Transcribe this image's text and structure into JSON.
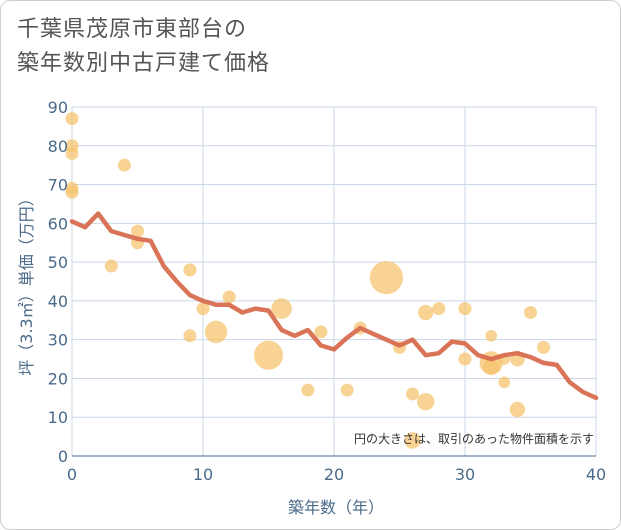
{
  "chart_data": {
    "type": "scatter",
    "title_lines": [
      "千葉県茂原市東部台の",
      "築年数別中古戸建て価格"
    ],
    "xlabel": "築年数（年）",
    "ylabel": "坪（3.3㎡）単価（万円）",
    "xlim": [
      0,
      40
    ],
    "ylim": [
      0,
      90
    ],
    "x_ticks": [
      0,
      10,
      20,
      30,
      40
    ],
    "y_ticks": [
      0,
      10,
      20,
      30,
      40,
      50,
      60,
      70,
      80,
      90
    ],
    "grid": true,
    "note": "円の大きさは、取引のあった物件面積を示す",
    "colors": {
      "bubble": "#f5c26b",
      "line": "#d86d4f",
      "axis_text": "#4a6a8a",
      "grid": "#c9d7e6"
    },
    "bubbles": [
      {
        "x": 0,
        "y": 87,
        "size": 1
      },
      {
        "x": 0,
        "y": 80,
        "size": 1
      },
      {
        "x": 0,
        "y": 78,
        "size": 1
      },
      {
        "x": 0,
        "y": 69,
        "size": 1
      },
      {
        "x": 0,
        "y": 68,
        "size": 1
      },
      {
        "x": 4,
        "y": 75,
        "size": 1
      },
      {
        "x": 3,
        "y": 49,
        "size": 1
      },
      {
        "x": 5,
        "y": 58,
        "size": 1
      },
      {
        "x": 5,
        "y": 55,
        "size": 1
      },
      {
        "x": 9,
        "y": 48,
        "size": 1
      },
      {
        "x": 9,
        "y": 31,
        "size": 1
      },
      {
        "x": 10,
        "y": 38,
        "size": 1
      },
      {
        "x": 11,
        "y": 32,
        "size": 3
      },
      {
        "x": 12,
        "y": 41,
        "size": 1
      },
      {
        "x": 15,
        "y": 26,
        "size": 5
      },
      {
        "x": 16,
        "y": 38,
        "size": 2.5
      },
      {
        "x": 18,
        "y": 17,
        "size": 1
      },
      {
        "x": 19,
        "y": 32,
        "size": 1
      },
      {
        "x": 21,
        "y": 17,
        "size": 1
      },
      {
        "x": 22,
        "y": 33,
        "size": 1
      },
      {
        "x": 24,
        "y": 46,
        "size": 6.5
      },
      {
        "x": 25,
        "y": 28,
        "size": 1
      },
      {
        "x": 26,
        "y": 16,
        "size": 1
      },
      {
        "x": 26,
        "y": 4,
        "size": 1.6
      },
      {
        "x": 27,
        "y": 37,
        "size": 1.4
      },
      {
        "x": 27,
        "y": 14,
        "size": 1.8
      },
      {
        "x": 28,
        "y": 38,
        "size": 1
      },
      {
        "x": 30,
        "y": 38,
        "size": 1
      },
      {
        "x": 30,
        "y": 25,
        "size": 1
      },
      {
        "x": 32,
        "y": 31,
        "size": 0.8
      },
      {
        "x": 32,
        "y": 24,
        "size": 3.2
      },
      {
        "x": 32,
        "y": 23,
        "size": 1.6
      },
      {
        "x": 33,
        "y": 19,
        "size": 0.8
      },
      {
        "x": 33,
        "y": 25,
        "size": 0.8
      },
      {
        "x": 34,
        "y": 25,
        "size": 1.3
      },
      {
        "x": 34,
        "y": 12,
        "size": 1.4
      },
      {
        "x": 35,
        "y": 37,
        "size": 1
      },
      {
        "x": 36,
        "y": 28,
        "size": 1
      }
    ],
    "series": [
      {
        "type": "line",
        "x": [
          0,
          1,
          2,
          3,
          4,
          5,
          6,
          7,
          8,
          9,
          10,
          11,
          12,
          13,
          14,
          15,
          16,
          17,
          18,
          19,
          20,
          21,
          22,
          23,
          24,
          25,
          26,
          27,
          28,
          29,
          30,
          31,
          32,
          33,
          34,
          35,
          36,
          37,
          38,
          39,
          40
        ],
        "values": [
          60.5,
          59,
          62.5,
          58,
          57,
          56,
          55.5,
          49,
          45,
          41.5,
          40,
          39,
          39,
          37,
          38,
          37.5,
          32.5,
          31,
          32.5,
          28.5,
          27.5,
          30.5,
          33,
          31.5,
          30,
          28.5,
          30,
          26,
          26.5,
          29.5,
          29,
          26,
          25,
          26,
          26.5,
          25.5,
          24,
          23.5,
          19,
          16.5,
          15
        ]
      }
    ]
  }
}
